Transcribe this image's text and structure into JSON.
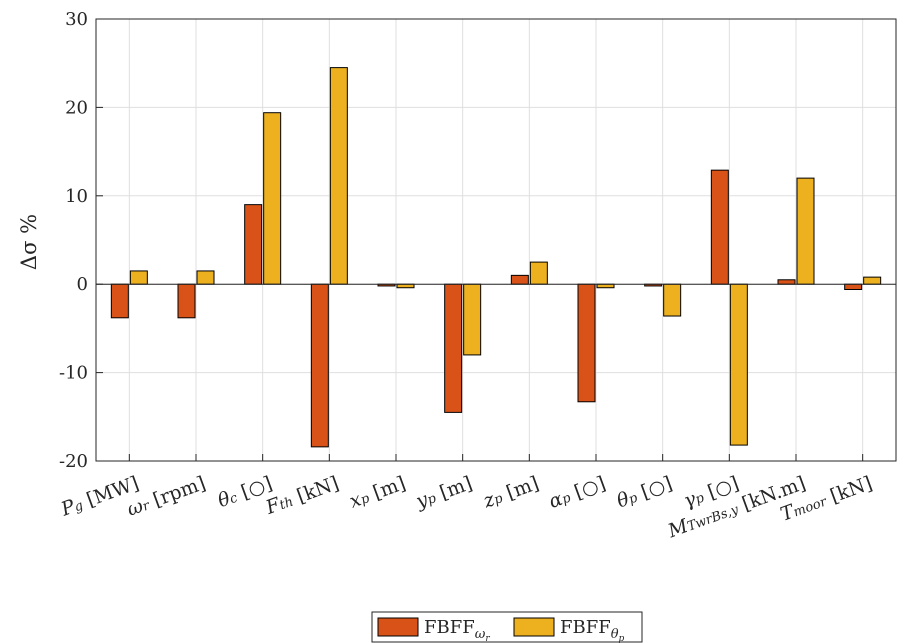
{
  "chart_data": {
    "type": "bar",
    "ylabel": "Δσ %",
    "ylim": [
      -20,
      30
    ],
    "yticks": [
      {
        "value": -20,
        "label": "-20"
      },
      {
        "value": -10,
        "label": "-10"
      },
      {
        "value": 0,
        "label": "0"
      },
      {
        "value": 10,
        "label": "10"
      },
      {
        "value": 20,
        "label": "20"
      },
      {
        "value": 30,
        "label": "30"
      }
    ],
    "grid": true,
    "legend_position": "bottom-center",
    "categories": [
      {
        "main": "P",
        "sub": "g",
        "unit": "[MW]"
      },
      {
        "main": "ω",
        "sub": "r",
        "unit": "[rpm]"
      },
      {
        "main": "θ",
        "sub": "c",
        "unit": "[○]"
      },
      {
        "main": "F",
        "sub": "th",
        "unit": "[kN]"
      },
      {
        "main": "x",
        "sub": "p",
        "unit": "[m]"
      },
      {
        "main": "y",
        "sub": "p",
        "unit": "[m]"
      },
      {
        "main": "z",
        "sub": "p",
        "unit": "[m]"
      },
      {
        "main": "α",
        "sub": "p",
        "unit": "[○]"
      },
      {
        "main": "θ",
        "sub": "p",
        "unit": "[○]"
      },
      {
        "main": "γ",
        "sub": "p",
        "unit": "[○]"
      },
      {
        "main": "M",
        "sub": "TwrBs,y",
        "unit": "[kN.m]"
      },
      {
        "main": "T",
        "sub": "moor",
        "unit": "[kN]"
      }
    ],
    "series": [
      {
        "name_main": "FBFF",
        "name_sub": "ω",
        "name_subsub": "r",
        "color": "#D95319",
        "values": [
          -3.8,
          -3.8,
          9.0,
          -18.4,
          -0.2,
          -14.5,
          1.0,
          -13.3,
          -0.2,
          12.9,
          0.5,
          -0.6
        ]
      },
      {
        "name_main": "FBFF",
        "name_sub": "θ",
        "name_subsub": "p",
        "color": "#EDB120",
        "values": [
          1.5,
          1.5,
          19.4,
          24.5,
          -0.4,
          -8.0,
          2.5,
          -0.4,
          -3.6,
          -18.2,
          12.0,
          0.8
        ]
      }
    ]
  }
}
